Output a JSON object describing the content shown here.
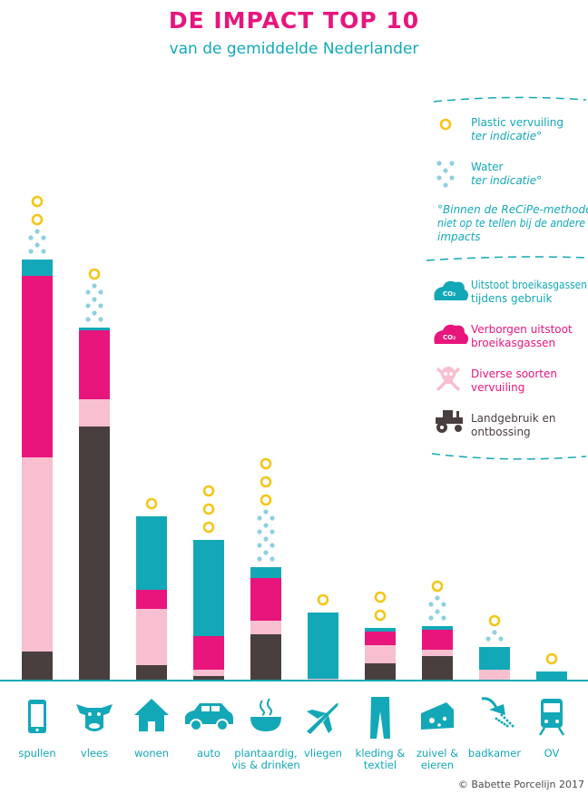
{
  "title": "DE IMPACT TOP 10",
  "subtitle": "van de gemiddelde Nederlander",
  "credit": "© Babette Porcelijn 2017",
  "colors": {
    "title": "#e8157c",
    "subtitle": "#13a8b8",
    "co2_use": "#13a8b8",
    "co2_hidden": "#e8157c",
    "pollution": "#f7bfcf",
    "land": "#4a3f3f",
    "plastic": "#f5c518",
    "water": "#8fd0e0",
    "icon": "#13a8b8",
    "axis": "#13a8b8"
  },
  "legend": {
    "plastic": {
      "label": "Plastic vervuiling",
      "note": "ter indicatie°"
    },
    "water": {
      "label": "Water",
      "note": "ter indicatie°"
    },
    "footnote": [
      "°Binnen de ReCiPe-methode",
      "niet op te tellen bij de andere",
      "impacts"
    ],
    "co2_use": {
      "lines": [
        "Uitstoot broeikasgassen",
        "tijdens gebruik"
      ],
      "icon": "co2-cloud-icon"
    },
    "co2_hidden": {
      "lines": [
        "Verborgen uitstoot",
        "broeikasgassen"
      ],
      "icon": "co2-cloud-icon"
    },
    "pollution": {
      "lines": [
        "Diverse soorten",
        "vervuiling"
      ],
      "icon": "skull-crossbones-icon"
    },
    "land": {
      "lines": [
        "Landgebruik en",
        "ontbossing"
      ],
      "icon": "tractor-icon"
    }
  },
  "chart_data": {
    "type": "bar",
    "stacked": true,
    "categories": [
      "spullen",
      "vlees",
      "wonen",
      "auto",
      "plantaardig, vis & drinken",
      "vliegen",
      "kleding & textiel",
      "zuivel & eieren",
      "badkamer",
      "OV"
    ],
    "category_lines": [
      [
        "spullen"
      ],
      [
        "vlees"
      ],
      [
        "wonen"
      ],
      [
        "auto"
      ],
      [
        "plantaardig,",
        "vis & drinken"
      ],
      [
        "vliegen"
      ],
      [
        "kleding &",
        "textiel"
      ],
      [
        "zuivel &",
        "eieren"
      ],
      [
        "badkamer"
      ],
      [
        "OV"
      ]
    ],
    "category_icons": [
      "smartphone-icon",
      "cow-icon",
      "house-icon",
      "car-icon",
      "bowl-icon",
      "airplane-icon",
      "jeans-icon",
      "cheese-icon",
      "shower-icon",
      "train-icon"
    ],
    "series": [
      {
        "key": "land",
        "name": "Landgebruik en ontbossing",
        "values": [
          31,
          279,
          16,
          4,
          50,
          0,
          18,
          26,
          0,
          0
        ]
      },
      {
        "key": "pollution",
        "name": "Diverse soorten vervuiling",
        "values": [
          214,
          30,
          62,
          7,
          15,
          1,
          20,
          7,
          11,
          0
        ]
      },
      {
        "key": "co2_hidden",
        "name": "Verborgen uitstoot broeikasgassen",
        "values": [
          200,
          76,
          21,
          37,
          47,
          0,
          15,
          22,
          0,
          0
        ]
      },
      {
        "key": "co2_use",
        "name": "Uitstoot broeikasgassen tijdens gebruik",
        "values": [
          18,
          3,
          81,
          106,
          12,
          73,
          4,
          4,
          25,
          9
        ]
      }
    ],
    "plastic_coins": [
      2,
      1,
      1,
      3,
      3,
      1,
      2,
      1,
      1,
      1
    ],
    "water_rows": [
      2,
      3,
      0,
      0,
      4,
      0,
      0,
      2,
      1,
      0
    ],
    "ylim": [
      0,
      470
    ],
    "xlabel": "",
    "ylabel": "",
    "grid": false
  }
}
